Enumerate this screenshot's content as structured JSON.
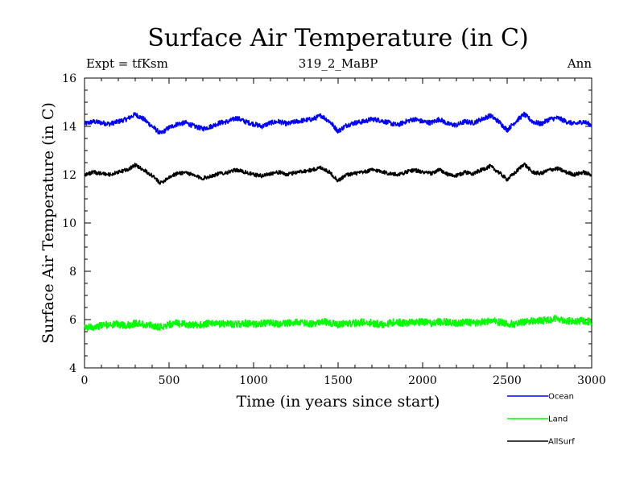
{
  "chart_data": {
    "type": "line",
    "title": "Surface Air Temperature (in C)",
    "subtitle_left": "Expt = tfKsm",
    "subtitle_center": "319_2_MaBP",
    "subtitle_right": "Ann",
    "xlabel": "Time (in years since start)",
    "ylabel": "Surface Air Temperature (in C)",
    "xlim": [
      0,
      3000
    ],
    "ylim": [
      4,
      16
    ],
    "xticks": [
      0,
      500,
      1000,
      1500,
      2000,
      2500,
      3000
    ],
    "xtick_labels": [
      "0",
      "500",
      "1000",
      "1500",
      "2000",
      "2500",
      "3000"
    ],
    "yticks": [
      4,
      6,
      8,
      10,
      12,
      14,
      16
    ],
    "ytick_labels": [
      "4",
      "6",
      "8",
      "10",
      "12",
      "14",
      "16"
    ],
    "legend_position": "bottom-right, below plot",
    "series": [
      {
        "name": "Ocean",
        "color": "#0000ff",
        "x": [
          0,
          50,
          100,
          150,
          200,
          250,
          300,
          350,
          400,
          450,
          500,
          550,
          600,
          650,
          700,
          750,
          800,
          850,
          900,
          950,
          1000,
          1050,
          1100,
          1150,
          1200,
          1250,
          1300,
          1350,
          1400,
          1450,
          1500,
          1550,
          1600,
          1650,
          1700,
          1750,
          1800,
          1850,
          1900,
          1950,
          2000,
          2050,
          2100,
          2150,
          2200,
          2250,
          2300,
          2350,
          2400,
          2450,
          2500,
          2550,
          2600,
          2650,
          2700,
          2750,
          2800,
          2850,
          2900,
          2950,
          3000
        ],
        "values": [
          14.1,
          14.2,
          14.15,
          14.1,
          14.2,
          14.3,
          14.5,
          14.3,
          14.0,
          13.7,
          13.95,
          14.1,
          14.15,
          14.0,
          13.9,
          14.0,
          14.15,
          14.2,
          14.35,
          14.2,
          14.1,
          14.0,
          14.15,
          14.2,
          14.1,
          14.2,
          14.25,
          14.3,
          14.45,
          14.2,
          13.8,
          14.05,
          14.15,
          14.2,
          14.3,
          14.25,
          14.15,
          14.05,
          14.2,
          14.3,
          14.2,
          14.15,
          14.3,
          14.1,
          14.05,
          14.2,
          14.15,
          14.3,
          14.45,
          14.2,
          13.85,
          14.2,
          14.5,
          14.2,
          14.1,
          14.3,
          14.35,
          14.2,
          14.1,
          14.2,
          14.05
        ]
      },
      {
        "name": "Land",
        "color": "#00ff00",
        "x": [
          0,
          50,
          100,
          150,
          200,
          250,
          300,
          350,
          400,
          450,
          500,
          550,
          600,
          650,
          700,
          750,
          800,
          850,
          900,
          950,
          1000,
          1050,
          1100,
          1150,
          1200,
          1250,
          1300,
          1350,
          1400,
          1450,
          1500,
          1550,
          1600,
          1650,
          1700,
          1750,
          1800,
          1850,
          1900,
          1950,
          2000,
          2050,
          2100,
          2150,
          2200,
          2250,
          2300,
          2350,
          2400,
          2450,
          2500,
          2550,
          2600,
          2650,
          2700,
          2750,
          2800,
          2850,
          2900,
          2950,
          3000
        ],
        "values": [
          5.65,
          5.7,
          5.75,
          5.8,
          5.8,
          5.75,
          5.85,
          5.8,
          5.75,
          5.7,
          5.8,
          5.85,
          5.8,
          5.75,
          5.8,
          5.85,
          5.8,
          5.85,
          5.8,
          5.85,
          5.8,
          5.85,
          5.85,
          5.8,
          5.85,
          5.9,
          5.85,
          5.8,
          5.95,
          5.85,
          5.8,
          5.85,
          5.85,
          5.9,
          5.85,
          5.8,
          5.85,
          5.9,
          5.85,
          5.9,
          5.9,
          5.85,
          5.9,
          5.9,
          5.85,
          5.9,
          5.85,
          5.9,
          5.95,
          5.9,
          5.85,
          5.8,
          5.9,
          5.95,
          5.95,
          6.0,
          6.05,
          5.95,
          5.9,
          5.95,
          5.9
        ]
      },
      {
        "name": "AllSurf",
        "color": "#000000",
        "x": [
          0,
          50,
          100,
          150,
          200,
          250,
          300,
          350,
          400,
          450,
          500,
          550,
          600,
          650,
          700,
          750,
          800,
          850,
          900,
          950,
          1000,
          1050,
          1100,
          1150,
          1200,
          1250,
          1300,
          1350,
          1400,
          1450,
          1500,
          1550,
          1600,
          1650,
          1700,
          1750,
          1800,
          1850,
          1900,
          1950,
          2000,
          2050,
          2100,
          2150,
          2200,
          2250,
          2300,
          2350,
          2400,
          2450,
          2500,
          2550,
          2600,
          2650,
          2700,
          2750,
          2800,
          2850,
          2900,
          2950,
          3000
        ],
        "values": [
          12.0,
          12.1,
          12.05,
          12.0,
          12.1,
          12.2,
          12.4,
          12.2,
          11.95,
          11.65,
          11.9,
          12.05,
          12.1,
          11.95,
          11.85,
          11.95,
          12.05,
          12.1,
          12.2,
          12.1,
          12.0,
          11.95,
          12.05,
          12.1,
          12.0,
          12.1,
          12.15,
          12.2,
          12.3,
          12.1,
          11.75,
          12.0,
          12.05,
          12.1,
          12.2,
          12.15,
          12.05,
          12.0,
          12.1,
          12.2,
          12.1,
          12.05,
          12.2,
          12.0,
          11.95,
          12.1,
          12.05,
          12.2,
          12.35,
          12.1,
          11.8,
          12.1,
          12.45,
          12.1,
          12.05,
          12.2,
          12.25,
          12.1,
          12.0,
          12.1,
          12.0
        ]
      }
    ]
  }
}
